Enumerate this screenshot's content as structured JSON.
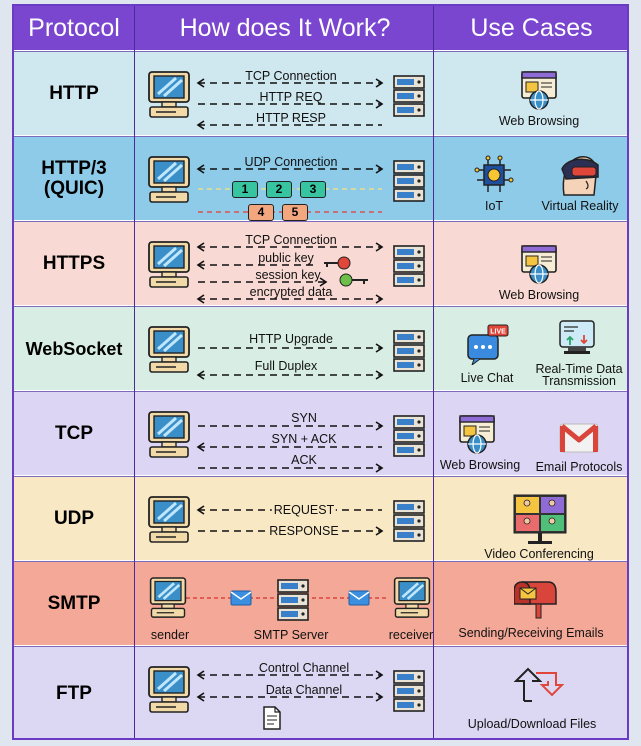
{
  "headers": {
    "protocol": "Protocol",
    "how": "How does It Work?",
    "use_cases": "Use Cases"
  },
  "colors": {
    "header": "#7a46cf",
    "http": "#cfe7ef",
    "http3": "#8ecbe8",
    "https": "#f9d9d4",
    "websocket": "#d8eee4",
    "tcp": "#dcd5f3",
    "udp": "#f8e8c4",
    "smtp": "#f4a998",
    "ftp": "#dcd8f3"
  },
  "rows": {
    "http": {
      "name": "HTTP",
      "msgs": [
        "TCP Connection",
        "HTTP REQ",
        "HTTP RESP"
      ],
      "uses": [
        "Web Browsing"
      ]
    },
    "http3": {
      "name": "HTTP/3\n(QUIC)",
      "msgs": [
        "UDP Connection"
      ],
      "packets": [
        "1",
        "2",
        "3",
        "4",
        "5"
      ],
      "uses": [
        "IoT",
        "Virtual Reality"
      ]
    },
    "https": {
      "name": "HTTPS",
      "msgs": [
        "TCP Connection",
        "public key",
        "session key",
        "encrypted data"
      ],
      "uses": [
        "Web Browsing"
      ]
    },
    "websocket": {
      "name": "WebSocket",
      "msgs": [
        "HTTP Upgrade",
        "Full Duplex"
      ],
      "uses": [
        "Live Chat",
        "Real-Time Data",
        "Transmission"
      ],
      "badge": "LIVE"
    },
    "tcp": {
      "name": "TCP",
      "msgs": [
        "SYN",
        "SYN + ACK",
        "ACK"
      ],
      "uses": [
        "Web Browsing",
        "Email Protocols"
      ]
    },
    "udp": {
      "name": "UDP",
      "msgs": [
        "REQUEST",
        "RESPONSE"
      ],
      "uses": [
        "Video Conferencing"
      ]
    },
    "smtp": {
      "name": "SMTP",
      "nodes": [
        "sender",
        "SMTP Server",
        "receiver"
      ],
      "uses": [
        "Sending/Receiving Emails"
      ]
    },
    "ftp": {
      "name": "FTP",
      "msgs": [
        "Control Channel",
        "Data Channel"
      ],
      "uses": [
        "Upload/Download Files"
      ]
    }
  }
}
